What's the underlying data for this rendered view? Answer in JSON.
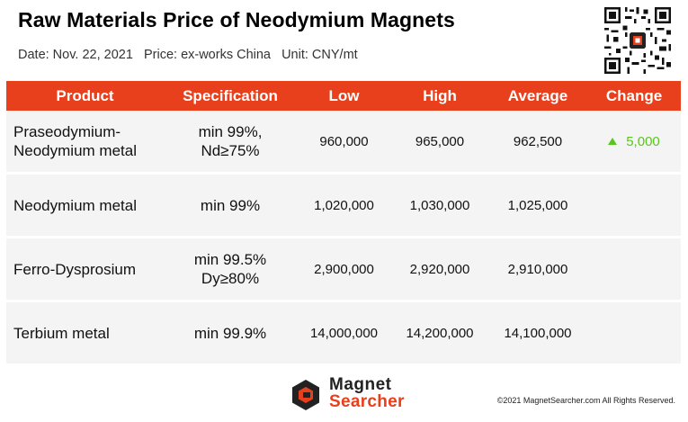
{
  "header": {
    "title": "Raw Materials Price of Neodymium Magnets",
    "meta": "Date: Nov. 22, 2021   Price: ex-works China   Unit: CNY/mt"
  },
  "table": {
    "columns": [
      "Product",
      "Specification",
      "Low",
      "High",
      "Average",
      "Change"
    ],
    "rows": [
      {
        "product": "Praseodymium-\nNeodymium metal",
        "spec": "min 99%,\nNd≥75%",
        "low": "960,000",
        "high": "965,000",
        "average": "962,500",
        "change": "5,000"
      },
      {
        "product": "Neodymium metal",
        "spec": "min 99%",
        "low": "1,020,000",
        "high": "1,030,000",
        "average": "1,025,000",
        "change": ""
      },
      {
        "product": "Ferro-Dysprosium",
        "spec": "min 99.5%\nDy≥80%",
        "low": "2,900,000",
        "high": "2,920,000",
        "average": "2,910,000",
        "change": ""
      },
      {
        "product": "Terbium metal",
        "spec": "min 99.9%",
        "low": "14,000,000",
        "high": "14,200,000",
        "average": "14,100,000",
        "change": ""
      }
    ]
  },
  "footer": {
    "logo_line1": "Magnet",
    "logo_line2": "Searcher",
    "copyright": "©2021 MagnetSearcher.com All Rights Reserved."
  },
  "colors": {
    "accent": "#e8401c",
    "row_bg": "#f4f4f4",
    "change_up": "#5bc51f"
  },
  "icons": {
    "qr": "qr-code-icon",
    "logo": "magnet-searcher-logo-icon",
    "change": "triangle-up-icon"
  }
}
